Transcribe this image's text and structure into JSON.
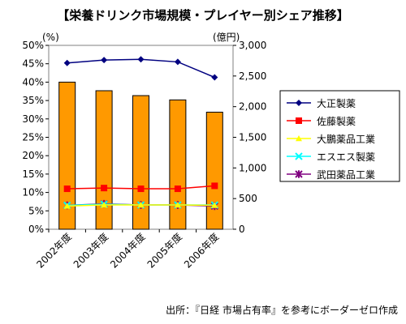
{
  "chart_data": {
    "type": "bar+line",
    "title": "【栄養ドリンク市場規模・プレイヤー別シェア推移】",
    "categories": [
      "2002年度",
      "2003年度",
      "2004年度",
      "2005年度",
      "2006年度"
    ],
    "bars": {
      "axis": "right",
      "values": [
        2400,
        2260,
        2180,
        2110,
        1910
      ],
      "color": "#ff9900"
    },
    "series": [
      {
        "name": "大正製薬",
        "values": [
          45.2,
          46.0,
          46.2,
          45.5,
          41.3
        ],
        "color": "#000080",
        "marker": "diamond"
      },
      {
        "name": "佐藤製薬",
        "values": [
          11.0,
          11.2,
          11.0,
          11.0,
          11.8
        ],
        "color": "#ff0000",
        "marker": "square"
      },
      {
        "name": "大鵬薬品工業",
        "values": [
          6.3,
          6.6,
          6.6,
          6.6,
          6.5
        ],
        "color": "#ffff00",
        "marker": "triangle"
      },
      {
        "name": "エスエス製薬",
        "values": [
          6.5,
          6.8,
          6.6,
          6.6,
          6.6
        ],
        "color": "#00ffff",
        "marker": "x"
      },
      {
        "name": "武田薬品工業",
        "values": [
          6.5,
          6.9,
          6.6,
          6.6,
          6.3
        ],
        "color": "#800080",
        "marker": "star"
      }
    ],
    "y_left": {
      "unit": "(%)",
      "min": 0,
      "max": 50,
      "step": 5,
      "ticks": [
        "0%",
        "5%",
        "10%",
        "15%",
        "20%",
        "25%",
        "30%",
        "35%",
        "40%",
        "45%",
        "50%"
      ]
    },
    "y_right": {
      "unit": "(億円)",
      "min": 0,
      "max": 3000,
      "step": 500,
      "ticks": [
        "0",
        "500",
        "1,000",
        "1,500",
        "2,000",
        "2,500",
        "3,000"
      ]
    },
    "grid": false,
    "legend_position": "right"
  },
  "source": "出所：『日経 市場占有率』を参考にボーダーゼロ作成"
}
